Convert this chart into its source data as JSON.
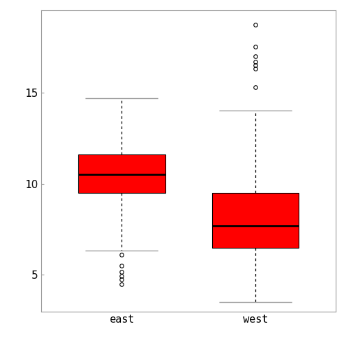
{
  "categories": [
    "east",
    "west"
  ],
  "east": {
    "q1": 9.5,
    "median": 10.5,
    "q3": 11.6,
    "whisker_low": 6.35,
    "whisker_high": 14.7,
    "outliers": [
      4.5,
      4.75,
      4.95,
      5.15,
      5.5,
      6.1
    ]
  },
  "west": {
    "q1": 6.5,
    "median": 7.7,
    "q3": 9.5,
    "whisker_low": 3.5,
    "whisker_high": 14.0,
    "outliers": [
      15.3,
      16.3,
      16.5,
      16.7,
      17.0,
      17.5,
      18.7
    ]
  },
  "box_color": "#ff0000",
  "median_color": "#000000",
  "whisker_color": "#000000",
  "cap_color": "#a0a0a0",
  "outlier_color": "#000000",
  "box_edge_color": "#000000",
  "ylim": [
    3.0,
    19.5
  ],
  "yticks": [
    5,
    10,
    15
  ],
  "figsize": [
    5.04,
    5.04
  ],
  "dpi": 100
}
